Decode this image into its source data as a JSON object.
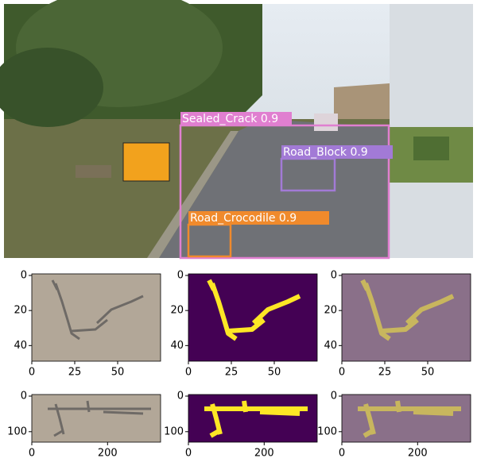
{
  "detections": [
    {
      "label": "Sealed_Crack 0.9"
    },
    {
      "label": "Road_Block 0.9"
    },
    {
      "label": "Road_Crocodile 0.9"
    }
  ],
  "panels": {
    "row1": {
      "xticks": [
        0,
        25,
        50
      ],
      "yticks": [
        0,
        20,
        40
      ]
    },
    "row2": {
      "xticks": [
        0,
        200
      ],
      "yticks": [
        0,
        100
      ]
    }
  }
}
